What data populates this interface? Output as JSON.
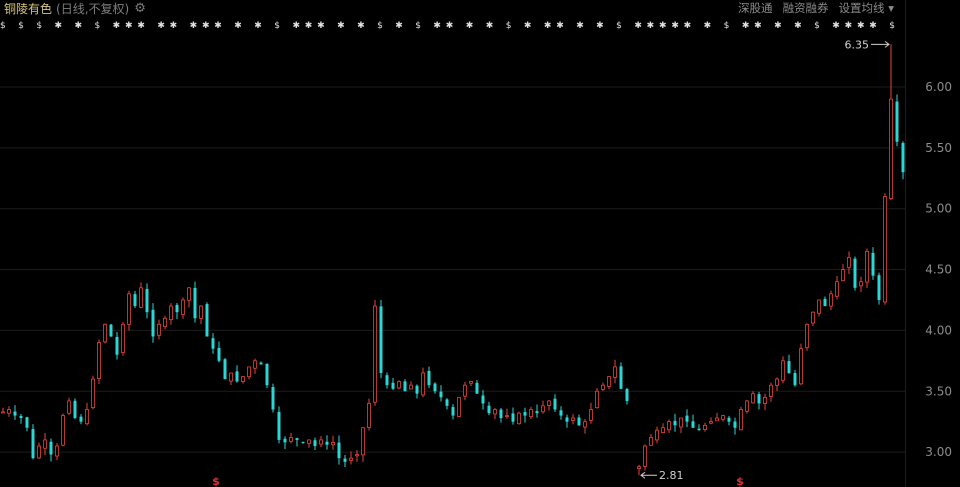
{
  "header": {
    "stock_name": "铜陵有色",
    "period": "(日线,不复权)",
    "gear_icon": "gear-icon",
    "links": [
      "深股通",
      "融资融券",
      "设置均线"
    ],
    "dropdown_icon": "caret-down-icon"
  },
  "chart_data": {
    "type": "candlestick",
    "y_ticks": [
      "6.00",
      "5.50",
      "5.00",
      "4.50",
      "4.00",
      "3.50",
      "3.00"
    ],
    "ylim": [
      2.78,
      6.68
    ],
    "grid": true,
    "closes": [
      3.33,
      3.35,
      3.3,
      3.28,
      3.2,
      2.95,
      3.05,
      3.1,
      2.98,
      3.05,
      3.3,
      3.42,
      3.28,
      3.25,
      3.35,
      3.6,
      3.9,
      4.05,
      3.95,
      3.8,
      4.05,
      4.3,
      4.2,
      4.35,
      4.15,
      3.95,
      4.05,
      4.1,
      4.2,
      4.15,
      4.25,
      4.35,
      4.1,
      4.2,
      3.95,
      3.85,
      3.75,
      3.6,
      3.65,
      3.58,
      3.62,
      3.7,
      3.75,
      3.72,
      3.55,
      3.35,
      3.1,
      3.08,
      3.12,
      3.1,
      3.08,
      3.1,
      3.05,
      3.1,
      3.06,
      3.08,
      2.95,
      2.92,
      2.95,
      2.98,
      3.2,
      3.4,
      4.2,
      3.65,
      3.55,
      3.52,
      3.58,
      3.5,
      3.55,
      3.48,
      3.65,
      3.55,
      3.5,
      3.45,
      3.38,
      3.3,
      3.45,
      3.55,
      3.58,
      3.48,
      3.4,
      3.32,
      3.35,
      3.28,
      3.3,
      3.25,
      3.32,
      3.3,
      3.35,
      3.32,
      3.38,
      3.42,
      3.35,
      3.3,
      3.25,
      3.28,
      3.22,
      3.25,
      3.35,
      3.5,
      3.55,
      3.62,
      3.7,
      3.52,
      3.42,
      null,
      2.88,
      3.05,
      3.12,
      3.18,
      3.2,
      3.25,
      3.22,
      3.28,
      3.25,
      3.2,
      3.18,
      3.22,
      3.25,
      3.28,
      3.3,
      3.25,
      3.2,
      3.35,
      3.42,
      3.48,
      3.4,
      3.45,
      3.55,
      3.6,
      3.75,
      3.65,
      3.55,
      3.85,
      4.05,
      4.15,
      4.25,
      4.2,
      4.3,
      4.4,
      4.5,
      4.6,
      4.35,
      4.4,
      4.65,
      4.45,
      4.25,
      5.1,
      5.9,
      5.55,
      5.3
    ],
    "high_overrides": {
      "148": 6.35,
      "62": 4.25
    },
    "low_overrides": {
      "106": 2.81
    },
    "annotations": {
      "max": "6.35",
      "min": "2.81"
    },
    "top_markers": "$ $ $ ✱ ✱ $ ✱✱✱ ✱✱ ✱✱✱ ✱ ✱ $ ✱✱✱ ✱ ✱ $ ✱ $ ✱✱ ✱ ✱ $ ✱ ✱✱ ✱ ✱ $ ✱✱✱✱✱ ✱ $ ✱✱ ✱ ✱ $ ✱✱✱✱ $",
    "bottom_markers": [
      "$",
      "$"
    ],
    "colors": {
      "up": "#e8443a",
      "down": "#2bd6d6",
      "grid": "#1c1c1c",
      "axis_text": "#8c8c8c",
      "marker_red": "#e03030"
    }
  }
}
